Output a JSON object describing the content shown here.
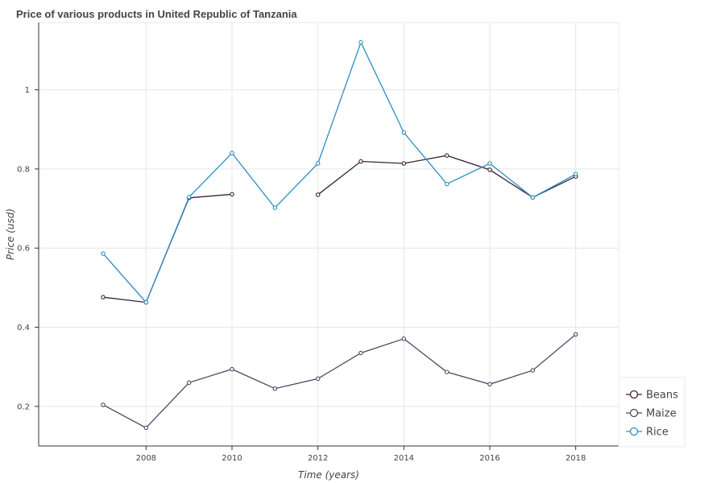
{
  "chart_data": {
    "type": "line",
    "title": "Price of various products in United Republic of Tanzania",
    "xlabel": "Time (years)",
    "ylabel": "Price (usd)",
    "x": [
      2007,
      2008,
      2009,
      2010,
      2011,
      2012,
      2013,
      2014,
      2015,
      2016,
      2017,
      2018
    ],
    "xlim": [
      2005.5,
      2019.0
    ],
    "ylim": [
      0.1,
      1.17
    ],
    "x_ticks": [
      2008,
      2010,
      2012,
      2014,
      2016,
      2018
    ],
    "y_ticks": [
      0.2,
      0.4,
      0.6,
      0.8,
      1
    ],
    "grid": true,
    "legend_position": "bottom-right",
    "series": [
      {
        "name": "Beans",
        "color": "#3b2232",
        "values": [
          0.476,
          0.463,
          0.727,
          0.736,
          null,
          0.735,
          0.819,
          0.814,
          0.834,
          0.798,
          0.728,
          0.781
        ]
      },
      {
        "name": "Maize",
        "color": "#4f4963",
        "values": [
          0.204,
          0.146,
          0.26,
          0.294,
          0.245,
          0.27,
          0.335,
          0.371,
          0.287,
          0.256,
          0.291,
          0.382
        ]
      },
      {
        "name": "Rice",
        "color": "#2a8fc1",
        "values": [
          0.586,
          0.463,
          0.729,
          0.84,
          0.702,
          0.814,
          1.12,
          0.892,
          0.762,
          0.814,
          0.728,
          0.787
        ]
      }
    ]
  }
}
